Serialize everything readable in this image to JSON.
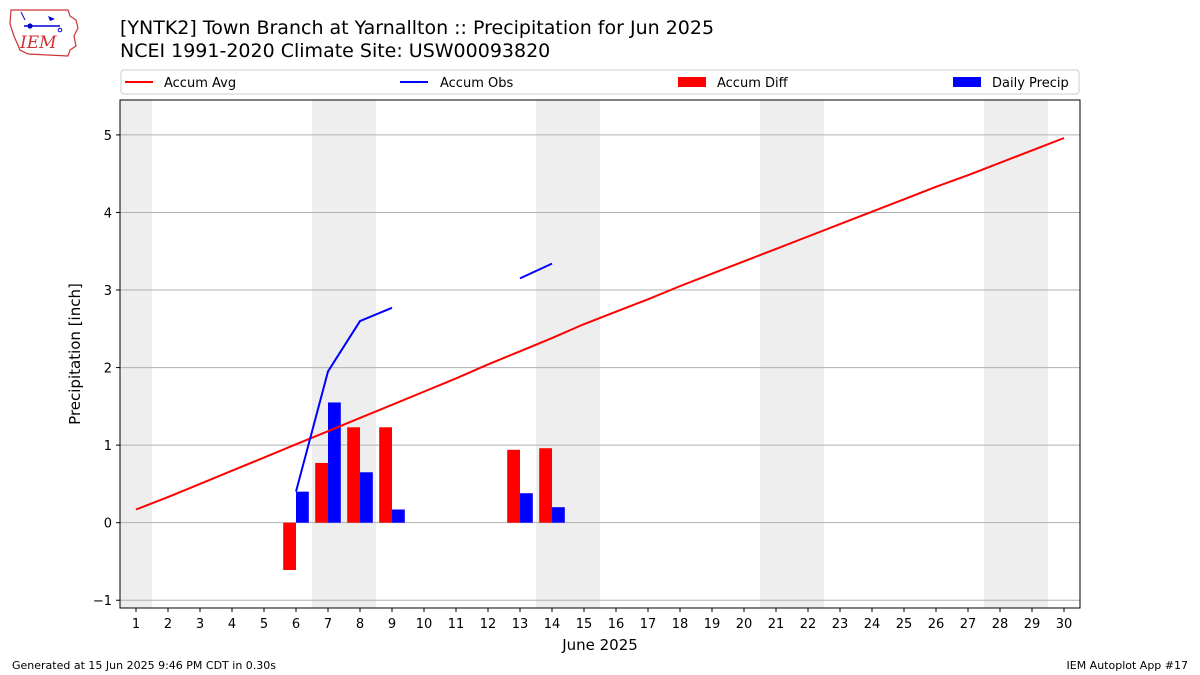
{
  "header": {
    "title_line1": "[YNTK2] Town Branch at Yarnallton :: Precipitation for Jun 2025",
    "title_line2": "NCEI 1991-2020 Climate Site: USW00093820",
    "logo_text": "IEM"
  },
  "footer": {
    "generated": "Generated at 15 Jun 2025 9:46 PM CDT in 0.30s",
    "app": "IEM Autoplot App #17"
  },
  "colors": {
    "avg": "#ff0000",
    "obs": "#0000ff",
    "diff": "#ff0000",
    "daily": "#0000ff",
    "weekend": "#eeeeee",
    "grid": "#b0b0b0"
  },
  "chart_data": {
    "type": "bar",
    "xlabel": "June 2025",
    "ylabel": "Precipitation [inch]",
    "xlim": [
      0.5,
      30.5
    ],
    "ylim": [
      -1.1,
      5.45
    ],
    "yticks": [
      -1,
      0,
      1,
      2,
      3,
      4,
      5
    ],
    "days": [
      1,
      2,
      3,
      4,
      5,
      6,
      7,
      8,
      9,
      10,
      11,
      12,
      13,
      14,
      15,
      16,
      17,
      18,
      19,
      20,
      21,
      22,
      23,
      24,
      25,
      26,
      27,
      28,
      29,
      30
    ],
    "weekend_bands": [
      [
        0.5,
        1.5
      ],
      [
        6.5,
        8.5
      ],
      [
        13.5,
        15.5
      ],
      [
        20.5,
        22.5
      ],
      [
        27.5,
        29.5
      ]
    ],
    "legend": [
      "Accum Avg",
      "Accum Obs",
      "Accum Diff",
      "Daily Precip"
    ],
    "accum_avg": [
      0.17,
      0.33,
      0.5,
      0.67,
      0.84,
      1.01,
      1.18,
      1.35,
      1.52,
      1.69,
      1.86,
      2.04,
      2.21,
      2.38,
      2.56,
      2.72,
      2.88,
      3.05,
      3.21,
      3.37,
      3.53,
      3.69,
      3.85,
      4.01,
      4.17,
      4.33,
      4.48,
      4.64,
      4.8,
      4.96
    ],
    "accum_obs": [
      null,
      null,
      null,
      null,
      null,
      0.4,
      1.95,
      2.6,
      2.77,
      null,
      null,
      null,
      3.15,
      3.34,
      null,
      null,
      null,
      null,
      null,
      null,
      null,
      null,
      null,
      null,
      null,
      null,
      null,
      null,
      null,
      null
    ],
    "accum_diff": [
      null,
      null,
      null,
      null,
      null,
      -0.61,
      0.77,
      1.23,
      1.23,
      null,
      null,
      null,
      0.94,
      0.96,
      null,
      null,
      null,
      null,
      null,
      null,
      null,
      null,
      null,
      null,
      null,
      null,
      null,
      null,
      null,
      null
    ],
    "daily_precip": [
      null,
      null,
      null,
      null,
      null,
      0.4,
      1.55,
      0.65,
      0.17,
      null,
      null,
      null,
      0.38,
      0.2,
      null,
      null,
      null,
      null,
      null,
      null,
      null,
      null,
      null,
      null,
      null,
      null,
      null,
      null,
      null,
      null
    ]
  }
}
